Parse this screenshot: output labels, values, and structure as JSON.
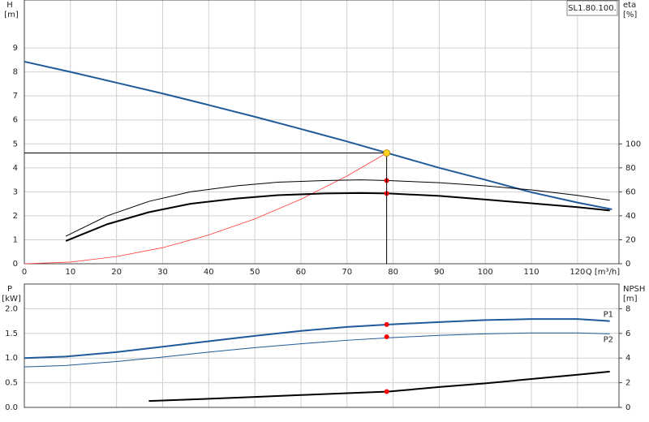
{
  "chart_data": [
    {
      "type": "line",
      "y_label": "H",
      "y_unit": "[m]",
      "y2_label": "eta",
      "y2_unit": "[%]",
      "x_label": "Q [m³/h]",
      "label_box": "SL1.80.100.",
      "xlim": [
        0,
        129
      ],
      "xticks": [
        0,
        10,
        20,
        30,
        40,
        50,
        60,
        70,
        80,
        90,
        100,
        110,
        120
      ],
      "ylim": [
        0,
        11
      ],
      "yticks": [
        0,
        1,
        2,
        3,
        4,
        5,
        6,
        7,
        8,
        9
      ],
      "y2lim": [
        0,
        220
      ],
      "y2ticks": [
        0,
        20,
        40,
        60,
        80,
        100
      ],
      "grid": true,
      "show_xtick_labels": true,
      "series": [
        {
          "color": "#1f5a99",
          "line_width": 2,
          "x": [
            0,
            10,
            20,
            30,
            40,
            50,
            60,
            70,
            80,
            90,
            100,
            110,
            120,
            127.5
          ],
          "values": [
            8.43,
            8.0,
            7.55,
            7.1,
            6.62,
            6.13,
            5.62,
            5.1,
            4.55,
            4.0,
            3.5,
            2.98,
            2.55,
            2.27
          ]
        },
        {
          "color": "#ff3b3b",
          "line_width": 0.8,
          "x": [
            0,
            10,
            20,
            30,
            40,
            50,
            60,
            70,
            78.6
          ],
          "values": [
            0,
            0.07,
            0.3,
            0.67,
            1.2,
            1.87,
            2.69,
            3.66,
            4.62
          ]
        },
        {
          "color": "#000000",
          "line_width": 1,
          "axis": "y2",
          "x": [
            9,
            18,
            27,
            36,
            46,
            55,
            65,
            73,
            79,
            90,
            100,
            110,
            120,
            127
          ],
          "values": [
            23,
            40,
            52,
            60,
            65,
            68,
            69.4,
            70,
            69.4,
            67.6,
            65,
            61.6,
            57,
            53
          ]
        },
        {
          "color": "#000000",
          "line_width": 2,
          "axis": "y2",
          "x": [
            9,
            18,
            27,
            36,
            46,
            55,
            65,
            73,
            79,
            90,
            100,
            110,
            120,
            127
          ],
          "values": [
            19,
            33,
            43,
            50,
            54.4,
            57.2,
            58.6,
            59,
            58.6,
            56.6,
            53.6,
            50.4,
            47.2,
            44.4
          ]
        }
      ],
      "points": [
        {
          "x": 78.6,
          "y": 69.4,
          "axis": "y2",
          "color": "#ff0000"
        },
        {
          "x": 78.6,
          "y": 58.6,
          "axis": "y2",
          "color": "#ff0000"
        },
        {
          "x": 78.6,
          "y": 4.62,
          "color": "#ffd21f",
          "crosshair": true
        }
      ]
    },
    {
      "type": "line",
      "y_label": "P",
      "y_unit": "[kW]",
      "y2_label": "NPSH",
      "y2_unit": "[m]",
      "xlim": [
        0,
        129
      ],
      "xticks": [
        0,
        10,
        20,
        30,
        40,
        50,
        60,
        70,
        80,
        90,
        100,
        110,
        120
      ],
      "ylim": [
        0,
        2.5
      ],
      "yticks": [
        {
          "value": 0,
          "label": "0.0"
        },
        0.5,
        {
          "value": 1,
          "label": "1.0"
        },
        1.5,
        {
          "value": 2,
          "label": "2.0"
        }
      ],
      "y2lim": [
        0,
        10
      ],
      "y2ticks": [
        0,
        2,
        4,
        6,
        8
      ],
      "grid": true,
      "show_xtick_labels": false,
      "series": [
        {
          "name": "P1",
          "color": "#1f5a99",
          "line_width": 2,
          "x": [
            0,
            9,
            20,
            30,
            40,
            50,
            60,
            70,
            79,
            90,
            100,
            110,
            120,
            127
          ],
          "values": [
            1.0,
            1.03,
            1.12,
            1.23,
            1.34,
            1.45,
            1.55,
            1.63,
            1.68,
            1.73,
            1.77,
            1.79,
            1.79,
            1.75
          ]
        },
        {
          "name": "P2",
          "color": "#1f5a99",
          "line_width": 1,
          "x": [
            0,
            9,
            20,
            30,
            40,
            50,
            60,
            70,
            79,
            90,
            100,
            110,
            120,
            127
          ],
          "values": [
            0.82,
            0.85,
            0.93,
            1.02,
            1.12,
            1.21,
            1.29,
            1.36,
            1.41,
            1.46,
            1.49,
            1.51,
            1.51,
            1.49
          ]
        },
        {
          "color": "#000000",
          "line_width": 2,
          "axis": "y2",
          "x": [
            27,
            40,
            50,
            60,
            70,
            79,
            90,
            100,
            110,
            120,
            127
          ],
          "values": [
            0.52,
            0.7,
            0.85,
            1.0,
            1.15,
            1.28,
            1.65,
            1.95,
            2.3,
            2.65,
            2.9
          ]
        }
      ],
      "points": [
        {
          "x": 78.6,
          "y": 1.68,
          "color": "#ff0000"
        },
        {
          "x": 78.6,
          "y": 1.43,
          "color": "#ff0000"
        },
        {
          "x": 78.6,
          "y": 1.28,
          "axis": "y2",
          "color": "#ff0000"
        }
      ]
    }
  ]
}
